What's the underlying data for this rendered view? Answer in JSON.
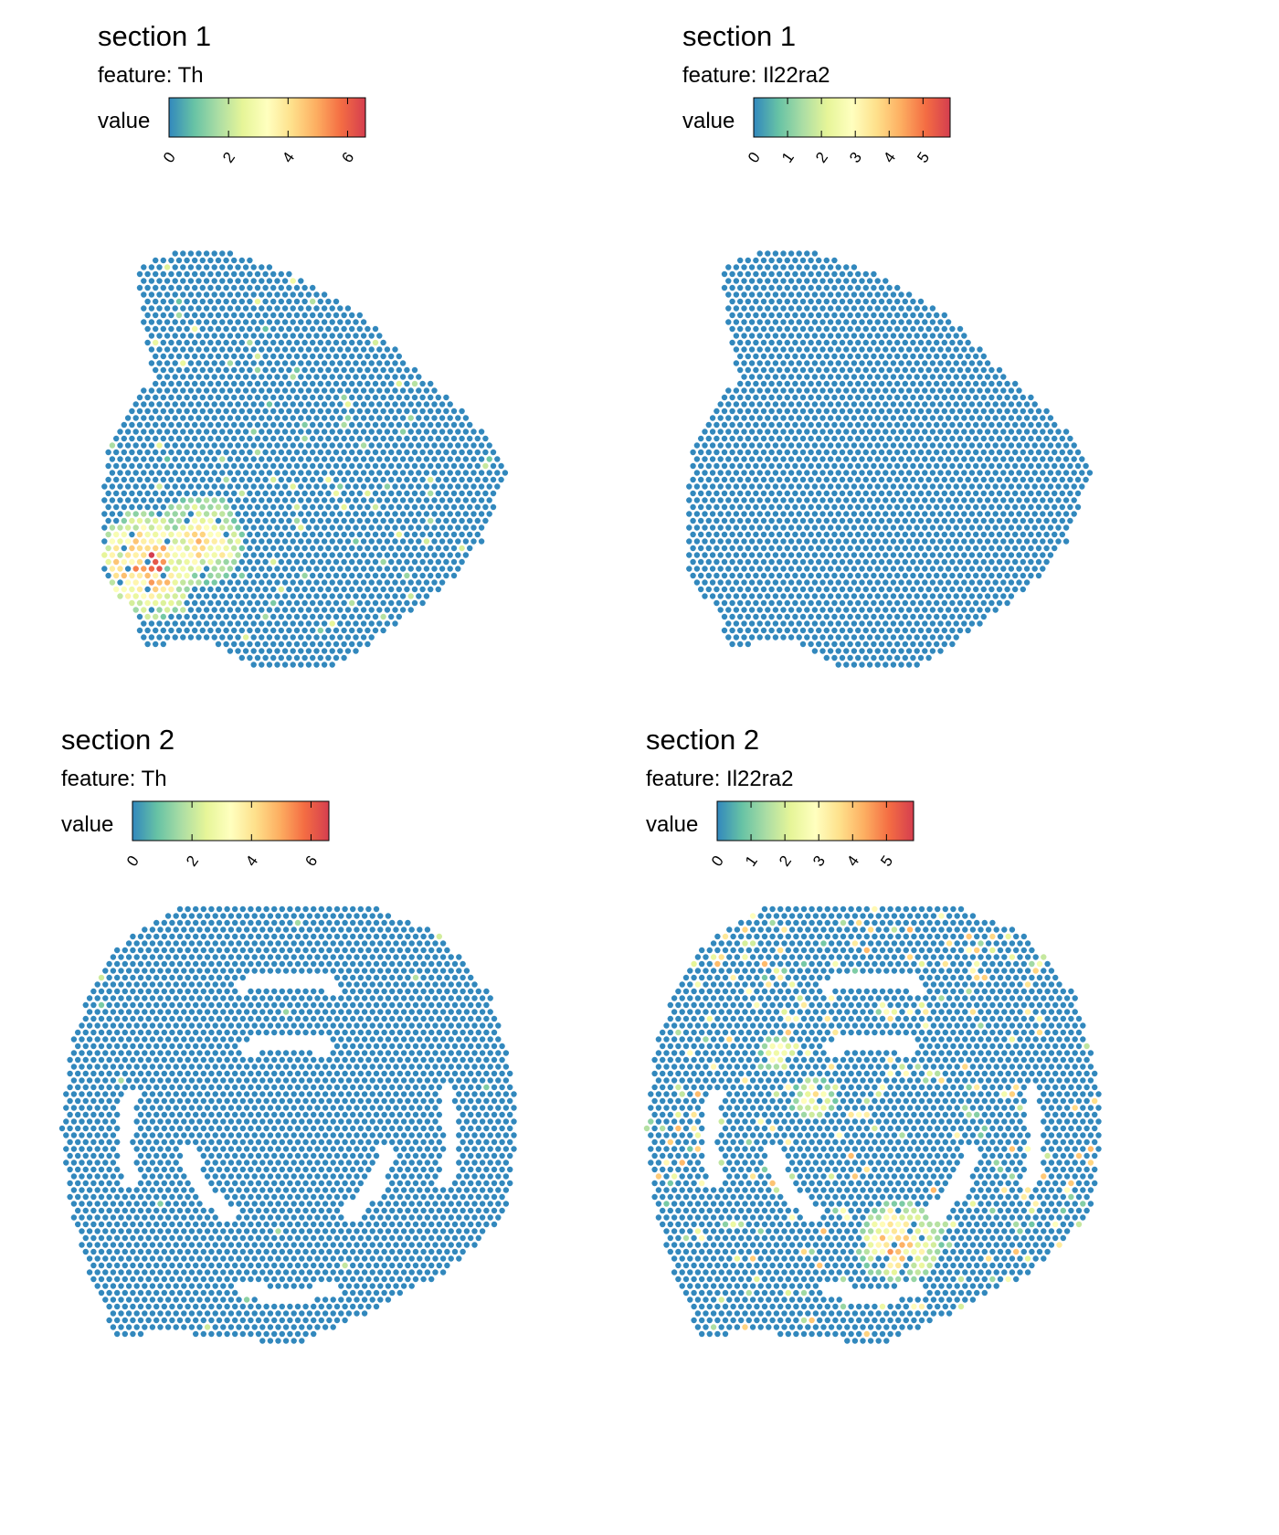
{
  "palette": [
    "#3288BD",
    "#66C2A5",
    "#ABDDA4",
    "#E6F598",
    "#FFFFBF",
    "#FEE08B",
    "#FDAE61",
    "#F46D43",
    "#D53E4F"
  ],
  "spot_default_color": "#3288BD",
  "chart_data": [
    {
      "type": "scatter",
      "section_label": "section 1",
      "feature_label": "feature:  Th",
      "legend_title": "value",
      "value_range": [
        0,
        6.6
      ],
      "ticks": [
        "0",
        "2",
        "4",
        "6"
      ],
      "tick_values": [
        0,
        2,
        4,
        6
      ],
      "shape": "section1",
      "hotspots": [
        {
          "x": 0.11,
          "y": 0.76,
          "value": 6.2,
          "spread": 0.08
        },
        {
          "x": 0.24,
          "y": 0.7,
          "value": 4.3,
          "spread": 0.07
        },
        {
          "x": 0.3,
          "y": 0.71,
          "value": 5.0,
          "spread": 0.03
        }
      ],
      "scatter_value_max": 2.8,
      "scatter_rate": 0.035
    },
    {
      "type": "scatter",
      "section_label": "section 1",
      "feature_label": "feature:  Il22ra2",
      "legend_title": "value",
      "value_range": [
        0,
        5.8
      ],
      "ticks": [
        "0",
        "1",
        "2",
        "3",
        "4",
        "5"
      ],
      "tick_values": [
        0,
        1,
        2,
        3,
        4,
        5
      ],
      "shape": "section1",
      "hotspots": [],
      "scatter_value_max": 0,
      "scatter_rate": 0
    },
    {
      "type": "scatter",
      "section_label": "section 2",
      "feature_label": "feature:  Th",
      "legend_title": "value",
      "value_range": [
        0,
        6.6
      ],
      "ticks": [
        "0",
        "2",
        "4",
        "6"
      ],
      "tick_values": [
        0,
        2,
        4,
        6
      ],
      "shape": "section2",
      "hotspots": [],
      "scatter_value_max": 2.2,
      "scatter_rate": 0.006
    },
    {
      "type": "scatter",
      "section_label": "section 2",
      "feature_label": "feature:  Il22ra2",
      "legend_title": "value",
      "value_range": [
        0,
        5.8
      ],
      "ticks": [
        "0",
        "1",
        "2",
        "3",
        "4",
        "5"
      ],
      "tick_values": [
        0,
        1,
        2,
        3,
        4,
        5
      ],
      "shape": "section2",
      "hotspots": [
        {
          "x": 0.56,
          "y": 0.76,
          "value": 4.6,
          "spread": 0.06
        },
        {
          "x": 0.29,
          "y": 0.33,
          "value": 4.0,
          "spread": 0.025
        },
        {
          "x": 0.37,
          "y": 0.43,
          "value": 3.8,
          "spread": 0.03
        }
      ],
      "scatter_value_max": 4.2,
      "scatter_rate": 0.09
    }
  ]
}
